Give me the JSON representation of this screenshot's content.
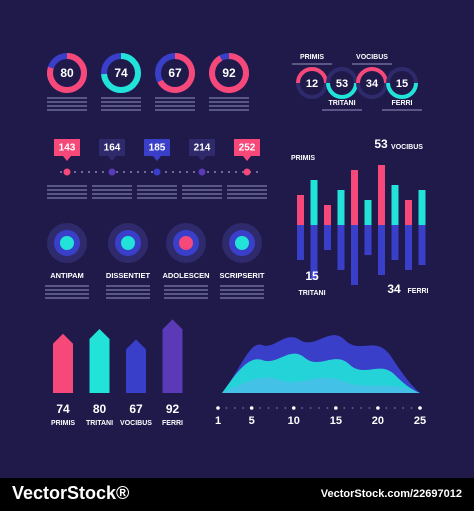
{
  "donuts": [
    {
      "value": 80,
      "color": "#f7487a"
    },
    {
      "value": 74,
      "color": "#22e3d8"
    },
    {
      "value": 67,
      "color": "#f7487a"
    },
    {
      "value": 92,
      "color": "#f7487a"
    }
  ],
  "rings": [
    {
      "name": "PRIMIS",
      "value": 12
    },
    {
      "name": "TRITANI",
      "value": 53
    },
    {
      "name": "VOCIBUS",
      "value": 34
    },
    {
      "name": "FERRI",
      "value": 15
    }
  ],
  "pins": [
    {
      "value": 143,
      "color": "#f7487a"
    },
    {
      "value": 164,
      "color": "#2f2a6b"
    },
    {
      "value": 185,
      "color": "#3a3fc9"
    },
    {
      "value": 214,
      "color": "#2f2a6b"
    },
    {
      "value": 252,
      "color": "#f7487a"
    }
  ],
  "bar_chart": {
    "labels": [
      {
        "name": "PRIMIS"
      },
      {
        "name": "VOCIBUS",
        "value": 53
      },
      {
        "name": "TRITANI",
        "value": 15
      },
      {
        "name": "FERRI",
        "value": 34
      }
    ],
    "up": [
      30,
      45,
      20,
      35,
      55,
      25,
      60,
      40,
      25,
      35
    ],
    "down": [
      35,
      55,
      25,
      45,
      60,
      30,
      50,
      35,
      45,
      40
    ]
  },
  "targets": [
    {
      "name": "ANTIPAM",
      "color": "#22e3d8"
    },
    {
      "name": "DISSENTIET",
      "color": "#22e3d8"
    },
    {
      "name": "ADOLESCEN",
      "color": "#f7487a"
    },
    {
      "name": "SCRIPSERIT",
      "color": "#22e3d8"
    }
  ],
  "arrows": [
    {
      "value": 74,
      "name": "PRIMIS",
      "color": "#f7487a"
    },
    {
      "value": 80,
      "name": "TRITANI",
      "color": "#22e3d8"
    },
    {
      "value": 67,
      "name": "VOCIBUS",
      "color": "#3a3fc9"
    },
    {
      "value": 92,
      "name": "FERRI",
      "color": "#5a3ab6"
    }
  ],
  "wave": {
    "xticks": [
      1,
      5,
      10,
      15,
      20,
      25
    ],
    "xlim": [
      1,
      25
    ]
  },
  "watermark": {
    "brand": "VectorStock®",
    "url": "VectorStock.com/22697012"
  }
}
